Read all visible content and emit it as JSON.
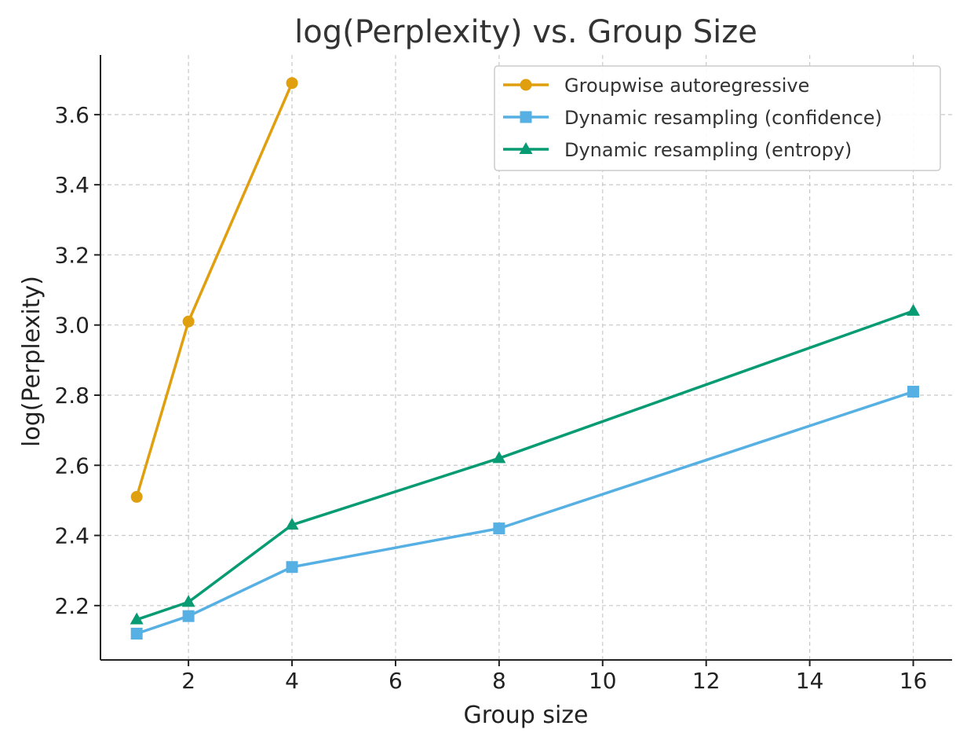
{
  "chart_data": {
    "type": "line",
    "title": "log(Perplexity) vs. Group Size",
    "xlabel": "Group size",
    "ylabel": "log(Perplexity)",
    "xlim": [
      0.3,
      16.75
    ],
    "ylim": [
      2.045,
      3.77
    ],
    "xticks": [
      2,
      4,
      6,
      8,
      10,
      12,
      14,
      16
    ],
    "yticks": [
      2.2,
      2.4,
      2.6,
      2.8,
      3.0,
      3.2,
      3.4,
      3.6
    ],
    "xtick_labels": [
      "2",
      "4",
      "6",
      "8",
      "10",
      "12",
      "14",
      "16"
    ],
    "ytick_labels": [
      "2.2",
      "2.4",
      "2.6",
      "2.8",
      "3.0",
      "3.2",
      "3.4",
      "3.6"
    ],
    "grid": true,
    "legend_position": "top-right",
    "series": [
      {
        "name": "Groupwise autoregressive",
        "color": "#E09F0F",
        "marker": "circle",
        "x": [
          1,
          2,
          4
        ],
        "y": [
          2.51,
          3.01,
          3.69
        ]
      },
      {
        "name": "Dynamic resampling (confidence)",
        "color": "#56B0E3",
        "marker": "square",
        "x": [
          1,
          2,
          4,
          8,
          16
        ],
        "y": [
          2.12,
          2.17,
          2.31,
          2.42,
          2.81
        ]
      },
      {
        "name": "Dynamic resampling (entropy)",
        "color": "#069B72",
        "marker": "triangle",
        "x": [
          1,
          2,
          4,
          8,
          16
        ],
        "y": [
          2.16,
          2.21,
          2.43,
          2.62,
          3.04
        ]
      }
    ]
  }
}
